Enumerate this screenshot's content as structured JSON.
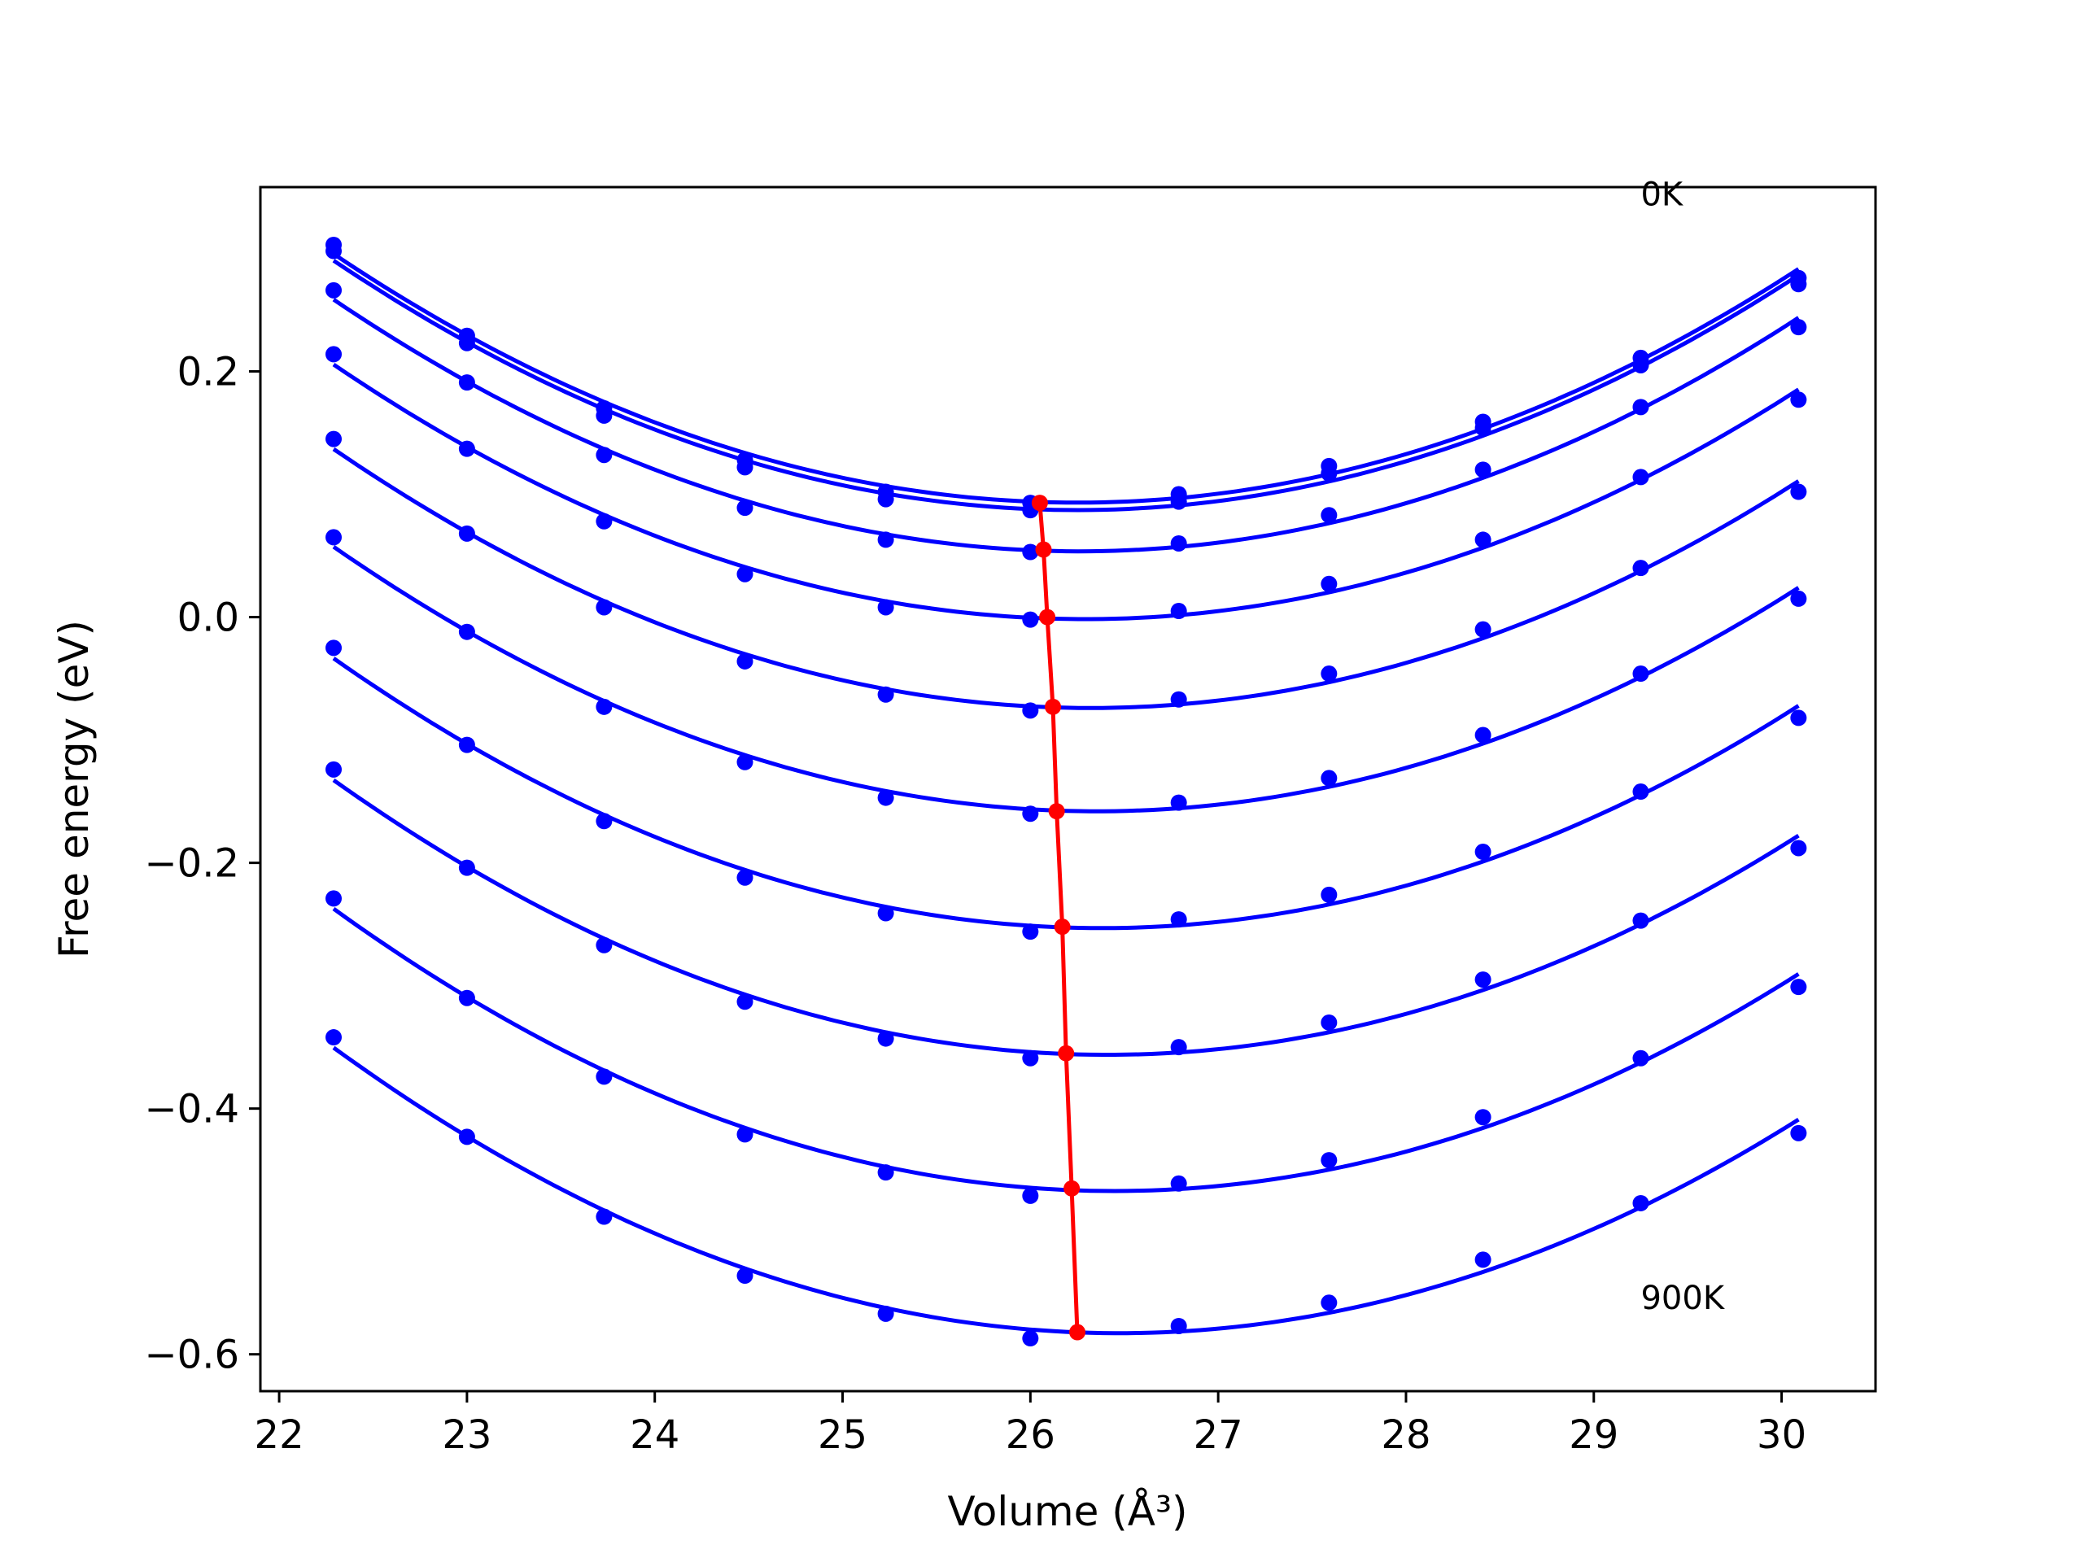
{
  "chart_data": {
    "type": "line",
    "xlabel": "Volume (Å³)",
    "ylabel": "Free energy (eV)",
    "xlim": [
      21.9,
      30.5
    ],
    "ylim": [
      -0.63,
      0.35
    ],
    "xticks": [
      22,
      23,
      24,
      25,
      26,
      27,
      28,
      29,
      30
    ],
    "yticks": [
      -0.6,
      -0.4,
      -0.2,
      0.0,
      0.2
    ],
    "xtick_labels": [
      "22",
      "23",
      "24",
      "25",
      "26",
      "27",
      "28",
      "29",
      "30"
    ],
    "ytick_labels": [
      "−0.6",
      "−0.4",
      "−0.2",
      "0.0",
      "0.2"
    ],
    "grid": false,
    "annotations": [
      {
        "text": "0K",
        "x": 29.25,
        "y": 0.335
      },
      {
        "text": "900K",
        "x": 29.25,
        "y": -0.563
      }
    ],
    "curve_color": "#0000ff",
    "minima_color": "#ff0000",
    "x": [
      22.29,
      23.0,
      23.73,
      24.48,
      25.23,
      26.0,
      26.79,
      27.59,
      28.41,
      29.25,
      30.09
    ],
    "series": [
      {
        "values": [
          0.303,
          0.229,
          0.17,
          0.128,
          0.102,
          0.093,
          0.1,
          0.123,
          0.159,
          0.211,
          0.276
        ]
      },
      {
        "values": [
          0.298,
          0.223,
          0.164,
          0.122,
          0.096,
          0.087,
          0.094,
          0.117,
          0.154,
          0.205,
          0.271
        ]
      },
      {
        "values": [
          0.266,
          0.191,
          0.132,
          0.089,
          0.063,
          0.053,
          0.06,
          0.083,
          0.12,
          0.171,
          0.236
        ]
      },
      {
        "values": [
          0.214,
          0.137,
          0.078,
          0.035,
          0.008,
          -0.002,
          0.005,
          0.027,
          0.063,
          0.114,
          0.177
        ]
      },
      {
        "values": [
          0.145,
          0.068,
          0.008,
          -0.036,
          -0.063,
          -0.076,
          -0.067,
          -0.046,
          -0.01,
          0.04,
          0.102
        ]
      },
      {
        "values": [
          0.065,
          -0.012,
          -0.073,
          -0.118,
          -0.147,
          -0.16,
          -0.151,
          -0.131,
          -0.096,
          -0.046,
          0.015
        ]
      },
      {
        "values": [
          -0.025,
          -0.104,
          -0.166,
          -0.212,
          -0.241,
          -0.256,
          -0.246,
          -0.226,
          -0.191,
          -0.142,
          -0.082
        ]
      },
      {
        "values": [
          -0.124,
          -0.204,
          -0.267,
          -0.313,
          -0.343,
          -0.359,
          -0.35,
          -0.33,
          -0.295,
          -0.247,
          -0.188
        ]
      },
      {
        "values": [
          -0.229,
          -0.31,
          -0.374,
          -0.421,
          -0.452,
          -0.471,
          -0.461,
          -0.442,
          -0.407,
          -0.359,
          -0.301
        ]
      },
      {
        "values": [
          -0.342,
          -0.423,
          -0.488,
          -0.536,
          -0.567,
          -0.587,
          -0.577,
          -0.558,
          -0.523,
          -0.477,
          -0.42
        ]
      }
    ],
    "minima": {
      "x": [
        26.05,
        26.07,
        26.09,
        26.12,
        26.14,
        26.17,
        26.19,
        26.22,
        26.25
      ],
      "y": [
        0.093,
        0.055,
        0.0,
        -0.073,
        -0.158,
        -0.252,
        -0.355,
        -0.465,
        -0.582
      ]
    }
  }
}
